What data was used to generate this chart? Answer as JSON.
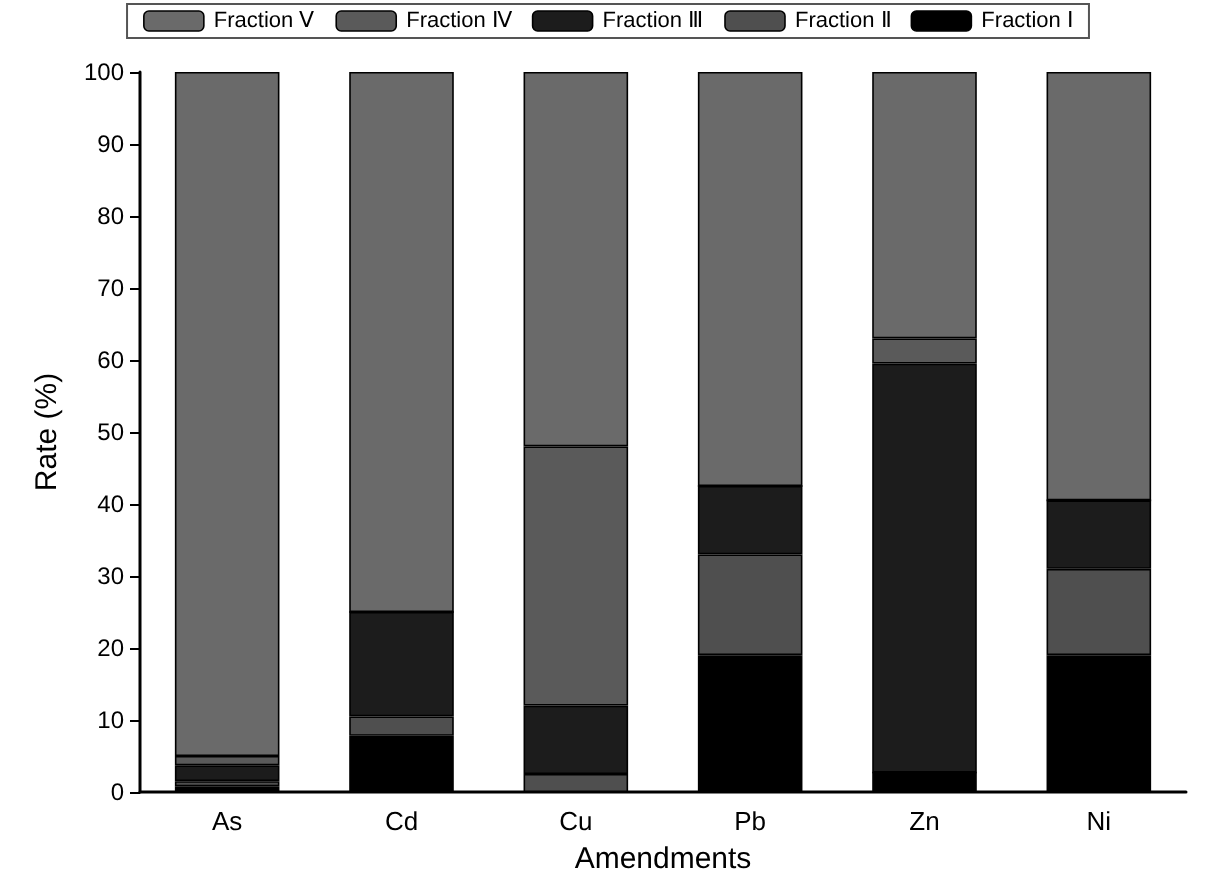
{
  "chart_data": {
    "type": "bar",
    "stacked": true,
    "xlabel": "Amendments",
    "ylabel": "Rate (%)",
    "categories": [
      "As",
      "Cd",
      "Cu",
      "Pb",
      "Zn",
      "Ni"
    ],
    "series": [
      {
        "name": "Fraction Ⅰ",
        "color": "#000000",
        "values": [
          0.8,
          7.8,
          0,
          19,
          2.7,
          19
        ]
      },
      {
        "name": "Fraction Ⅱ",
        "color": "#4f4f4f",
        "values": [
          0.7,
          2.7,
          2.5,
          14,
          0,
          12
        ]
      },
      {
        "name": "Fraction Ⅲ",
        "color": "#1c1c1c",
        "values": [
          2.2,
          14.5,
          9.5,
          9.5,
          56.8,
          9.5
        ]
      },
      {
        "name": "Fraction Ⅳ",
        "color": "#5a5a5a",
        "values": [
          1.3,
          0,
          36,
          0,
          3.5,
          0
        ]
      },
      {
        "name": "Fraction Ⅴ",
        "color": "#6a6a6a",
        "values": [
          95,
          75,
          52,
          57.5,
          37,
          59.5
        ]
      }
    ],
    "ylim": [
      0,
      100
    ],
    "yticks": [
      0,
      10,
      20,
      30,
      40,
      50,
      60,
      70,
      80,
      90,
      100
    ],
    "grid": false,
    "legend": "top"
  }
}
